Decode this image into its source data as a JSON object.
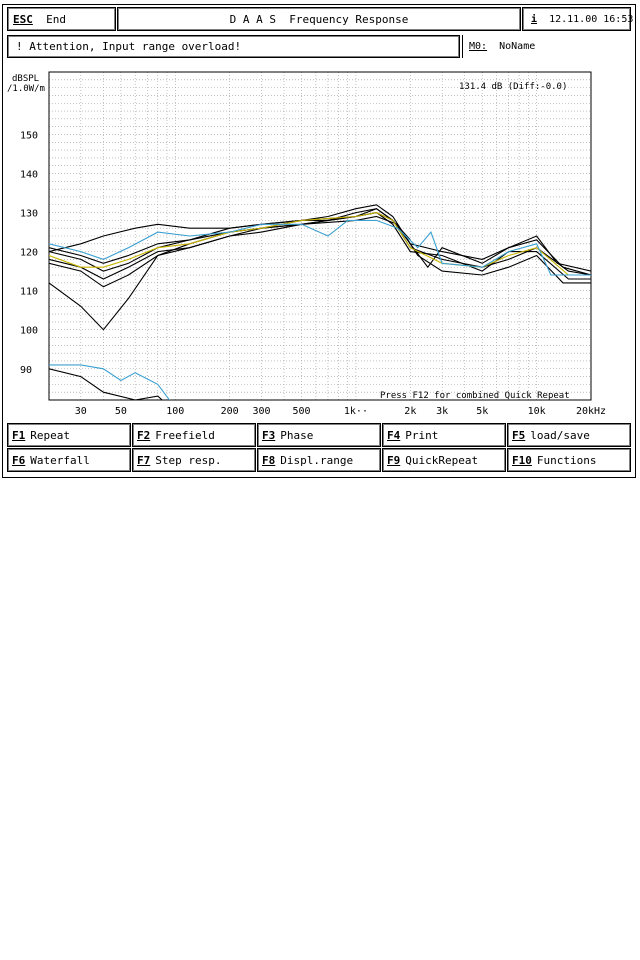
{
  "header": {
    "esc_key": "ESC",
    "esc_label": "End",
    "title": "D A A S  Frequency Response",
    "info_key": "i",
    "datetime": "12.11.00 16:53"
  },
  "status": {
    "message": "! Attention, Input range overload!",
    "memory_key": "M0:",
    "memory_name": "NoName"
  },
  "chart_data": {
    "type": "line",
    "ylabel": "dBSPL\n/1.0W/m",
    "ylabel_line1": "dBSPL",
    "ylabel_line2": "/1.0W/m",
    "xlabel": "",
    "x_scale": "log",
    "xlim": [
      20,
      20000
    ],
    "ylim": [
      82,
      166
    ],
    "yticks": [
      90,
      100,
      110,
      120,
      130,
      140,
      150
    ],
    "xticks": [
      {
        "v": 30,
        "label": "30"
      },
      {
        "v": 50,
        "label": "50"
      },
      {
        "v": 100,
        "label": "100"
      },
      {
        "v": 200,
        "label": "200"
      },
      {
        "v": 300,
        "label": "300"
      },
      {
        "v": 500,
        "label": "500"
      },
      {
        "v": 1000,
        "label": "1k··"
      },
      {
        "v": 2000,
        "label": "2k"
      },
      {
        "v": 3000,
        "label": "3k"
      },
      {
        "v": 5000,
        "label": "5k"
      },
      {
        "v": 10000,
        "label": "10k"
      },
      {
        "v": 20000,
        "label": "20kHz"
      }
    ],
    "grid": true,
    "readout": "131.4 dB (Diff:-0.0)",
    "note": "Press F12 for combined Quick Repeat",
    "series": [
      {
        "color": "#000000",
        "points": [
          [
            20,
            120
          ],
          [
            30,
            118
          ],
          [
            40,
            115
          ],
          [
            55,
            117
          ],
          [
            80,
            121
          ],
          [
            120,
            123
          ],
          [
            200,
            125
          ],
          [
            300,
            126
          ],
          [
            500,
            128
          ],
          [
            700,
            128
          ],
          [
            1000,
            130
          ],
          [
            1300,
            131
          ],
          [
            1600,
            128
          ],
          [
            2000,
            121
          ],
          [
            3000,
            118
          ],
          [
            5000,
            116
          ],
          [
            7000,
            118
          ],
          [
            10000,
            121
          ],
          [
            15000,
            115
          ],
          [
            20000,
            114
          ]
        ]
      },
      {
        "color": "#000000",
        "points": [
          [
            20,
            121
          ],
          [
            30,
            119
          ],
          [
            40,
            117
          ],
          [
            55,
            119
          ],
          [
            80,
            122
          ],
          [
            120,
            123
          ],
          [
            200,
            126
          ],
          [
            300,
            127
          ],
          [
            500,
            128
          ],
          [
            700,
            129
          ],
          [
            1000,
            131
          ],
          [
            1300,
            132
          ],
          [
            1600,
            129
          ],
          [
            2000,
            122
          ],
          [
            2500,
            116
          ],
          [
            3000,
            121
          ],
          [
            5000,
            117
          ],
          [
            7000,
            121
          ],
          [
            10000,
            124
          ],
          [
            13000,
            117
          ],
          [
            20000,
            115
          ]
        ]
      },
      {
        "color": "#000000",
        "points": [
          [
            20,
            118
          ],
          [
            30,
            116
          ],
          [
            40,
            113
          ],
          [
            55,
            116
          ],
          [
            80,
            120
          ],
          [
            120,
            121
          ],
          [
            200,
            124
          ],
          [
            300,
            126
          ],
          [
            500,
            127
          ],
          [
            700,
            128
          ],
          [
            1000,
            129
          ],
          [
            1300,
            130
          ],
          [
            1600,
            127
          ],
          [
            2000,
            120
          ],
          [
            3000,
            119
          ],
          [
            5000,
            115
          ],
          [
            7000,
            120
          ],
          [
            10000,
            120
          ],
          [
            15000,
            113
          ],
          [
            20000,
            113
          ]
        ]
      },
      {
        "color": "#000000",
        "points": [
          [
            20,
            117
          ],
          [
            30,
            115
          ],
          [
            40,
            111
          ],
          [
            55,
            114
          ],
          [
            80,
            119
          ],
          [
            120,
            121
          ],
          [
            200,
            124
          ],
          [
            300,
            125
          ],
          [
            500,
            127
          ],
          [
            1000,
            128
          ],
          [
            1300,
            129
          ],
          [
            1700,
            127
          ],
          [
            2200,
            119
          ],
          [
            3000,
            115
          ],
          [
            5000,
            114
          ],
          [
            7000,
            116
          ],
          [
            10000,
            119
          ],
          [
            14000,
            112
          ],
          [
            20000,
            112
          ]
        ]
      },
      {
        "color": "#000000",
        "points": [
          [
            20,
            112
          ],
          [
            30,
            106
          ],
          [
            40,
            100
          ],
          [
            55,
            108
          ],
          [
            80,
            119
          ],
          [
            120,
            122
          ],
          [
            200,
            125
          ],
          [
            300,
            126
          ],
          [
            500,
            127
          ],
          [
            1000,
            129
          ],
          [
            1300,
            131
          ],
          [
            1600,
            128
          ],
          [
            2000,
            122
          ],
          [
            3000,
            120
          ],
          [
            5000,
            118
          ],
          [
            7000,
            121
          ],
          [
            10000,
            123
          ],
          [
            14000,
            116
          ],
          [
            20000,
            114
          ]
        ]
      },
      {
        "color": "#000000",
        "points": [
          [
            20,
            120
          ],
          [
            30,
            122
          ],
          [
            40,
            124
          ],
          [
            60,
            126
          ],
          [
            80,
            127
          ],
          [
            120,
            126
          ],
          [
            200,
            126
          ],
          [
            300,
            127
          ],
          [
            500,
            128
          ],
          [
            1000,
            129
          ],
          [
            1300,
            130
          ],
          [
            1600,
            128
          ],
          [
            2000,
            123
          ]
        ]
      },
      {
        "color": "#c8b400",
        "points": [
          [
            20,
            119
          ],
          [
            30,
            116
          ],
          [
            40,
            116
          ],
          [
            55,
            118
          ],
          [
            80,
            121
          ],
          [
            120,
            122
          ],
          [
            200,
            125
          ],
          [
            300,
            126
          ],
          [
            500,
            128
          ],
          [
            1000,
            129
          ],
          [
            1300,
            130
          ],
          [
            1600,
            128
          ],
          [
            2000,
            121
          ],
          [
            3000,
            117
          ],
          [
            5000,
            116
          ],
          [
            7000,
            119
          ],
          [
            10000,
            121
          ],
          [
            15000,
            114
          ],
          [
            20000,
            114
          ]
        ]
      },
      {
        "color": "#3aa0d0",
        "points": [
          [
            20,
            122
          ],
          [
            30,
            120
          ],
          [
            40,
            118
          ],
          [
            55,
            121
          ],
          [
            80,
            125
          ],
          [
            120,
            124
          ],
          [
            200,
            125
          ],
          [
            300,
            127
          ],
          [
            500,
            127
          ],
          [
            700,
            124
          ],
          [
            900,
            128
          ],
          [
            1300,
            128
          ],
          [
            1700,
            126
          ],
          [
            2200,
            121
          ],
          [
            2600,
            125
          ],
          [
            3000,
            117
          ],
          [
            5000,
            116
          ],
          [
            7000,
            120
          ],
          [
            10000,
            122
          ],
          [
            12000,
            114
          ],
          [
            20000,
            114
          ]
        ]
      },
      {
        "color": "#3aa0d0",
        "points": [
          [
            20,
            91
          ],
          [
            30,
            91
          ],
          [
            40,
            90
          ],
          [
            50,
            87
          ],
          [
            60,
            89
          ],
          [
            80,
            86
          ],
          [
            100,
            80
          ]
        ]
      },
      {
        "color": "#000000",
        "points": [
          [
            20,
            90
          ],
          [
            30,
            88
          ],
          [
            40,
            84
          ],
          [
            60,
            82
          ],
          [
            80,
            83
          ],
          [
            100,
            79
          ]
        ]
      }
    ]
  },
  "fkeys": [
    {
      "key": "F1",
      "label": "Repeat"
    },
    {
      "key": "F2",
      "label": "Freefield"
    },
    {
      "key": "F3",
      "label": "Phase"
    },
    {
      "key": "F4",
      "label": "Print"
    },
    {
      "key": "F5",
      "label": "load/save"
    },
    {
      "key": "F6",
      "label": "Waterfall"
    },
    {
      "key": "F7",
      "label": "Step resp."
    },
    {
      "key": "F8",
      "label": "Displ.range"
    },
    {
      "key": "F9",
      "label": "QuickRepeat"
    },
    {
      "key": "F10",
      "label": "Functions"
    }
  ]
}
